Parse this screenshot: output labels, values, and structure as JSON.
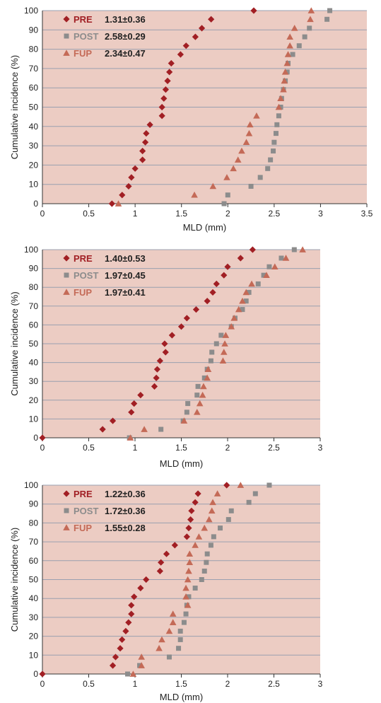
{
  "colors": {
    "plot_background": "#ecccc3",
    "gridline": "#9aa0b0",
    "pre": "#a11f24",
    "post": "#8c8c8c",
    "fup": "#c46a57"
  },
  "chart_data": [
    {
      "type": "scatter",
      "xlabel": "MLD (mm)",
      "ylabel": "Cumulative incidence (%)",
      "xlim": [
        0,
        3.5
      ],
      "ylim": [
        0,
        100
      ],
      "x_ticks": [
        "0",
        "0.5",
        "1",
        "1.5",
        "2",
        "2.5",
        "3",
        "3.5"
      ],
      "y_ticks": [
        "0",
        "10",
        "20",
        "30",
        "40",
        "50",
        "60",
        "70",
        "80",
        "90",
        "100"
      ],
      "grid": "horizontal",
      "legend_position": "top-left",
      "series": [
        {
          "name": "PRE",
          "stat": "1.31±0.36",
          "marker": "diamond",
          "color_key": "pre",
          "points": [
            [
              0.75,
              0
            ],
            [
              0.86,
              4.5
            ],
            [
              0.93,
              9
            ],
            [
              0.96,
              13.6
            ],
            [
              1.0,
              18.2
            ],
            [
              1.08,
              22.7
            ],
            [
              1.08,
              27.3
            ],
            [
              1.11,
              31.8
            ],
            [
              1.12,
              36.4
            ],
            [
              1.16,
              40.9
            ],
            [
              1.29,
              45.5
            ],
            [
              1.29,
              50
            ],
            [
              1.31,
              54.5
            ],
            [
              1.33,
              59.1
            ],
            [
              1.35,
              63.6
            ],
            [
              1.37,
              68.2
            ],
            [
              1.39,
              72.7
            ],
            [
              1.49,
              77.3
            ],
            [
              1.55,
              81.8
            ],
            [
              1.65,
              86.4
            ],
            [
              1.72,
              90.9
            ],
            [
              1.82,
              95.5
            ],
            [
              2.28,
              100
            ]
          ]
        },
        {
          "name": "POST",
          "stat": "2.58±0.29",
          "marker": "square",
          "color_key": "post",
          "points": [
            [
              1.96,
              0
            ],
            [
              2.0,
              4.5
            ],
            [
              2.25,
              9
            ],
            [
              2.35,
              13.6
            ],
            [
              2.43,
              18.2
            ],
            [
              2.46,
              22.7
            ],
            [
              2.49,
              27.3
            ],
            [
              2.5,
              31.8
            ],
            [
              2.52,
              36.4
            ],
            [
              2.53,
              40.9
            ],
            [
              2.55,
              45.5
            ],
            [
              2.57,
              50
            ],
            [
              2.58,
              54.5
            ],
            [
              2.6,
              59.1
            ],
            [
              2.62,
              63.6
            ],
            [
              2.64,
              68.2
            ],
            [
              2.65,
              72.7
            ],
            [
              2.7,
              77.3
            ],
            [
              2.77,
              81.8
            ],
            [
              2.83,
              86.4
            ],
            [
              2.88,
              90.9
            ],
            [
              3.07,
              95.5
            ],
            [
              3.1,
              100
            ]
          ]
        },
        {
          "name": "FUP",
          "stat": "2.34±0.47",
          "marker": "triangle",
          "color_key": "fup",
          "points": [
            [
              0.82,
              0
            ],
            [
              1.64,
              4.5
            ],
            [
              1.84,
              9
            ],
            [
              1.99,
              13.6
            ],
            [
              2.06,
              18.2
            ],
            [
              2.11,
              22.7
            ],
            [
              2.15,
              27.3
            ],
            [
              2.2,
              31.8
            ],
            [
              2.23,
              36.4
            ],
            [
              2.24,
              40.9
            ],
            [
              2.31,
              45.5
            ],
            [
              2.55,
              50
            ],
            [
              2.57,
              54.5
            ],
            [
              2.6,
              59.1
            ],
            [
              2.61,
              63.6
            ],
            [
              2.62,
              68.2
            ],
            [
              2.64,
              72.7
            ],
            [
              2.65,
              77.3
            ],
            [
              2.67,
              81.8
            ],
            [
              2.67,
              86.4
            ],
            [
              2.72,
              90.9
            ],
            [
              2.89,
              95.5
            ],
            [
              2.9,
              100
            ]
          ]
        }
      ]
    },
    {
      "type": "scatter",
      "xlabel": "MLD (mm)",
      "ylabel": "Cumulative incidence (%)",
      "xlim": [
        0,
        3
      ],
      "ylim": [
        0,
        100
      ],
      "x_ticks": [
        "0",
        "0.5",
        "1",
        "1.5",
        "2",
        "2.5",
        "3"
      ],
      "y_ticks": [
        "0",
        "10",
        "20",
        "30",
        "40",
        "50",
        "60",
        "70",
        "80",
        "90",
        "100"
      ],
      "grid": "horizontal",
      "legend_position": "top-left",
      "series": [
        {
          "name": "PRE",
          "stat": "1.40±0.53",
          "marker": "diamond",
          "color_key": "pre",
          "points": [
            [
              0,
              0
            ],
            [
              0.65,
              4.5
            ],
            [
              0.76,
              9
            ],
            [
              0.96,
              13.6
            ],
            [
              0.99,
              18.2
            ],
            [
              1.06,
              22.7
            ],
            [
              1.21,
              27.3
            ],
            [
              1.23,
              31.8
            ],
            [
              1.24,
              36.4
            ],
            [
              1.27,
              40.9
            ],
            [
              1.33,
              45.5
            ],
            [
              1.32,
              50
            ],
            [
              1.4,
              54.5
            ],
            [
              1.5,
              59.1
            ],
            [
              1.56,
              63.6
            ],
            [
              1.66,
              68.2
            ],
            [
              1.78,
              72.7
            ],
            [
              1.84,
              77.3
            ],
            [
              1.88,
              81.8
            ],
            [
              1.96,
              86.4
            ],
            [
              2.0,
              90.9
            ],
            [
              2.14,
              95.5
            ],
            [
              2.27,
              100
            ]
          ]
        },
        {
          "name": "POST",
          "stat": "1.97±0.45",
          "marker": "square",
          "color_key": "post",
          "points": [
            [
              0.94,
              0
            ],
            [
              1.28,
              4.5
            ],
            [
              1.52,
              9
            ],
            [
              1.56,
              13.6
            ],
            [
              1.57,
              18.2
            ],
            [
              1.67,
              22.7
            ],
            [
              1.68,
              27.3
            ],
            [
              1.75,
              31.8
            ],
            [
              1.78,
              36.4
            ],
            [
              1.82,
              40.9
            ],
            [
              1.83,
              45.5
            ],
            [
              1.88,
              50
            ],
            [
              1.93,
              54.5
            ],
            [
              2.04,
              59.1
            ],
            [
              2.08,
              63.6
            ],
            [
              2.16,
              68.2
            ],
            [
              2.2,
              72.7
            ],
            [
              2.23,
              77.3
            ],
            [
              2.33,
              81.8
            ],
            [
              2.39,
              86.4
            ],
            [
              2.45,
              90.9
            ],
            [
              2.58,
              95.5
            ],
            [
              2.72,
              100
            ]
          ]
        },
        {
          "name": "FUP",
          "stat": "1.97±0.41",
          "marker": "triangle",
          "color_key": "fup",
          "points": [
            [
              0.95,
              0
            ],
            [
              1.1,
              4.5
            ],
            [
              1.53,
              9
            ],
            [
              1.67,
              13.6
            ],
            [
              1.7,
              18.2
            ],
            [
              1.73,
              22.7
            ],
            [
              1.74,
              27.3
            ],
            [
              1.78,
              31.8
            ],
            [
              1.79,
              36.4
            ],
            [
              1.95,
              40.9
            ],
            [
              1.96,
              45.5
            ],
            [
              1.97,
              50
            ],
            [
              1.98,
              54.5
            ],
            [
              2.04,
              59.1
            ],
            [
              2.07,
              63.6
            ],
            [
              2.12,
              68.2
            ],
            [
              2.16,
              72.7
            ],
            [
              2.2,
              77.3
            ],
            [
              2.26,
              81.8
            ],
            [
              2.42,
              86.4
            ],
            [
              2.51,
              90.9
            ],
            [
              2.63,
              95.5
            ],
            [
              2.81,
              100
            ]
          ]
        }
      ]
    },
    {
      "type": "scatter",
      "xlabel": "MLD (mm)",
      "ylabel": "Cumulative incidence (%)",
      "xlim": [
        0,
        3
      ],
      "ylim": [
        0,
        100
      ],
      "x_ticks": [
        "0",
        "0.5",
        "1",
        "1.5",
        "2",
        "2.5",
        "3"
      ],
      "y_ticks": [
        "0",
        "10",
        "20",
        "30",
        "40",
        "50",
        "60",
        "70",
        "80",
        "90",
        "100"
      ],
      "grid": "horizontal",
      "legend_position": "top-left",
      "series": [
        {
          "name": "PRE",
          "stat": "1.22±0.36",
          "marker": "diamond",
          "color_key": "pre",
          "points": [
            [
              0,
              0
            ],
            [
              0.76,
              4.5
            ],
            [
              0.79,
              9
            ],
            [
              0.84,
              13.6
            ],
            [
              0.86,
              18.2
            ],
            [
              0.9,
              22.7
            ],
            [
              0.93,
              27.3
            ],
            [
              0.96,
              31.8
            ],
            [
              0.96,
              36.4
            ],
            [
              0.99,
              40.9
            ],
            [
              1.06,
              45.5
            ],
            [
              1.12,
              50
            ],
            [
              1.27,
              54.5
            ],
            [
              1.28,
              59.1
            ],
            [
              1.34,
              63.6
            ],
            [
              1.43,
              68.2
            ],
            [
              1.56,
              72.7
            ],
            [
              1.58,
              77.3
            ],
            [
              1.6,
              81.8
            ],
            [
              1.61,
              86.4
            ],
            [
              1.65,
              90.9
            ],
            [
              1.68,
              95.5
            ],
            [
              1.99,
              100
            ]
          ]
        },
        {
          "name": "POST",
          "stat": "1.72±0.36",
          "marker": "square",
          "color_key": "post",
          "points": [
            [
              0.92,
              0
            ],
            [
              1.05,
              4.5
            ],
            [
              1.37,
              9
            ],
            [
              1.47,
              13.6
            ],
            [
              1.49,
              18.2
            ],
            [
              1.49,
              22.7
            ],
            [
              1.53,
              27.3
            ],
            [
              1.55,
              31.8
            ],
            [
              1.56,
              36.4
            ],
            [
              1.58,
              40.9
            ],
            [
              1.65,
              45.5
            ],
            [
              1.72,
              50
            ],
            [
              1.75,
              54.5
            ],
            [
              1.77,
              59.1
            ],
            [
              1.78,
              63.6
            ],
            [
              1.82,
              68.2
            ],
            [
              1.85,
              72.7
            ],
            [
              1.92,
              77.3
            ],
            [
              2.01,
              81.8
            ],
            [
              2.04,
              86.4
            ],
            [
              2.23,
              90.9
            ],
            [
              2.3,
              95.5
            ],
            [
              2.45,
              100
            ]
          ]
        },
        {
          "name": "FUP",
          "stat": "1.55±0.28",
          "marker": "triangle",
          "color_key": "fup",
          "points": [
            [
              0.98,
              0
            ],
            [
              1.07,
              4.5
            ],
            [
              1.07,
              9
            ],
            [
              1.26,
              13.6
            ],
            [
              1.29,
              18.2
            ],
            [
              1.37,
              22.7
            ],
            [
              1.41,
              27.3
            ],
            [
              1.41,
              31.8
            ],
            [
              1.57,
              36.4
            ],
            [
              1.55,
              40.9
            ],
            [
              1.55,
              45.5
            ],
            [
              1.57,
              50
            ],
            [
              1.58,
              54.5
            ],
            [
              1.59,
              59.1
            ],
            [
              1.59,
              63.6
            ],
            [
              1.65,
              68.2
            ],
            [
              1.69,
              72.7
            ],
            [
              1.75,
              77.3
            ],
            [
              1.8,
              81.8
            ],
            [
              1.83,
              86.4
            ],
            [
              1.84,
              90.9
            ],
            [
              1.89,
              95.5
            ],
            [
              2.14,
              100
            ]
          ]
        }
      ]
    }
  ]
}
